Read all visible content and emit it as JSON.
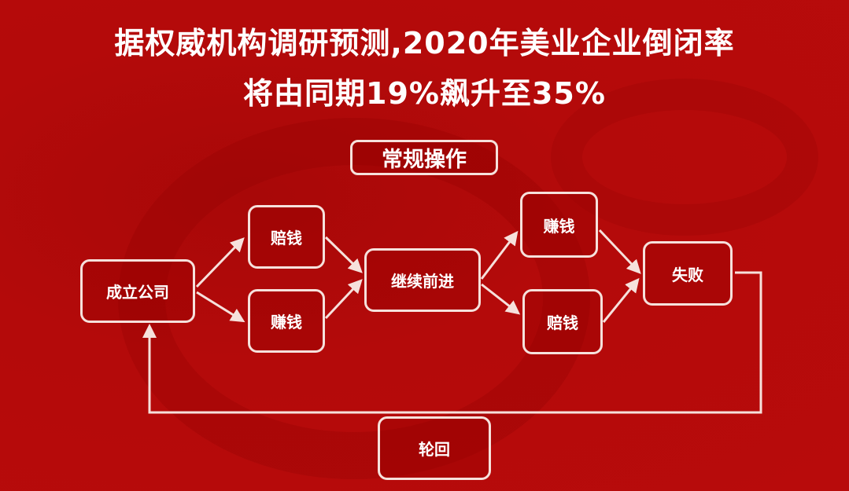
{
  "title": {
    "line1": "据权威机构调研预测,2020年美业企业倒闭率",
    "line2": "将由同期19%飙升至35%"
  },
  "diagram": {
    "header": "常规操作",
    "nodes": {
      "start": "成立公司",
      "lose1": "赔钱",
      "earn1": "赚钱",
      "continue": "继续前进",
      "earn2": "赚钱",
      "lose2": "赔钱",
      "fail": "失败",
      "cycle": "轮回"
    }
  },
  "colors": {
    "background": "#b40a0a",
    "stroke": "#f6e1dc",
    "text": "#ffffff"
  }
}
